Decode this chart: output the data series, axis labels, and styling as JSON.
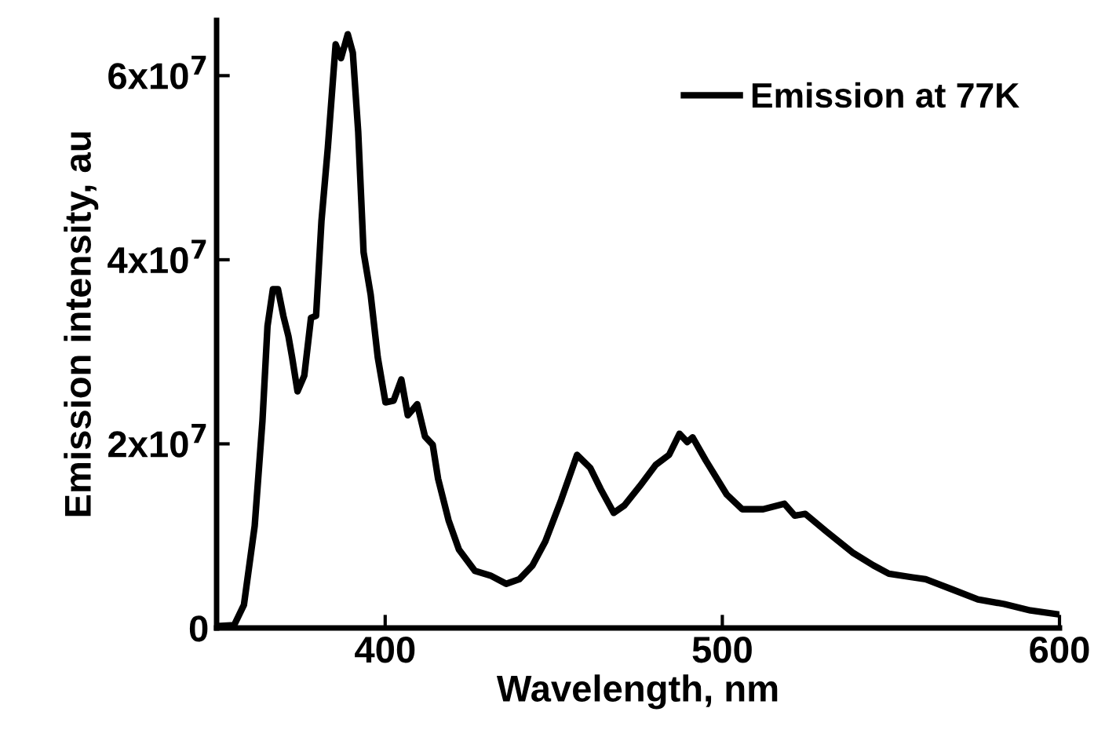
{
  "chart_data": {
    "type": "line",
    "xlabel": "Wavelength, nm",
    "ylabel": "Emission intensity, au",
    "xlim": [
      350,
      600
    ],
    "xticks": [
      400,
      500,
      600
    ],
    "ylim": [
      0,
      66000000
    ],
    "yticks": [
      {
        "value": 0,
        "label": "0"
      },
      {
        "value": 20000000,
        "label": "2x10$^{7}$"
      },
      {
        "value": 40000000,
        "label": "4x10$^{7}$"
      },
      {
        "value": 60000000,
        "label": "6x10$^{7}$"
      }
    ],
    "grid": false,
    "legend": "top right",
    "marker": "none",
    "line_style": "solid",
    "series": [
      {
        "name": "Emission at 77K",
        "color": "#000000",
        "x": [
          350,
          355.2,
          358.1,
          361.3,
          363.6,
          365.1,
          366.7,
          368.2,
          369.8,
          371.3,
          372.4,
          374.0,
          376.0,
          378.0,
          379.5,
          381.1,
          383.0,
          385.3,
          386.9,
          388.9,
          390.4,
          392.0,
          393.6,
          395.7,
          397.8,
          400.1,
          402.5,
          404.8,
          406.7,
          409.5,
          411.8,
          414.1,
          415.7,
          418.8,
          421.9,
          426.6,
          431.2,
          435.9,
          439.8,
          443.7,
          447.5,
          452.2,
          456.9,
          460.8,
          463.9,
          467.8,
          470.9,
          475.5,
          480.2,
          484.2,
          487.3,
          489.6,
          491.2,
          495.1,
          501.3,
          505.9,
          512.1,
          518.4,
          521.5,
          524.6,
          530.8,
          538.6,
          544.8,
          549.4,
          556.4,
          560.3,
          568.1,
          575.8,
          583.6,
          591.4,
          599.2
        ],
        "values": [
          200000,
          300000,
          2500000,
          11100000,
          22500000,
          32800000,
          36800000,
          36800000,
          33900000,
          31700000,
          29400000,
          25700000,
          27400000,
          33700000,
          33900000,
          44200000,
          52200000,
          63400000,
          61900000,
          64500000,
          62500000,
          53900000,
          40800000,
          36200000,
          29400000,
          24500000,
          24700000,
          27000000,
          23100000,
          24300000,
          20800000,
          19900000,
          16200000,
          11700000,
          8500000,
          6200000,
          5700000,
          4800000,
          5300000,
          6800000,
          9400000,
          13900000,
          18800000,
          17400000,
          15100000,
          12500000,
          13300000,
          15400000,
          17700000,
          18800000,
          21100000,
          20200000,
          20700000,
          18200000,
          14500000,
          12900000,
          12900000,
          13500000,
          12200000,
          12400000,
          10500000,
          8200000,
          6800000,
          5900000,
          5500000,
          5300000,
          4200000,
          3100000,
          2600000,
          1900000,
          1500000
        ]
      }
    ]
  }
}
